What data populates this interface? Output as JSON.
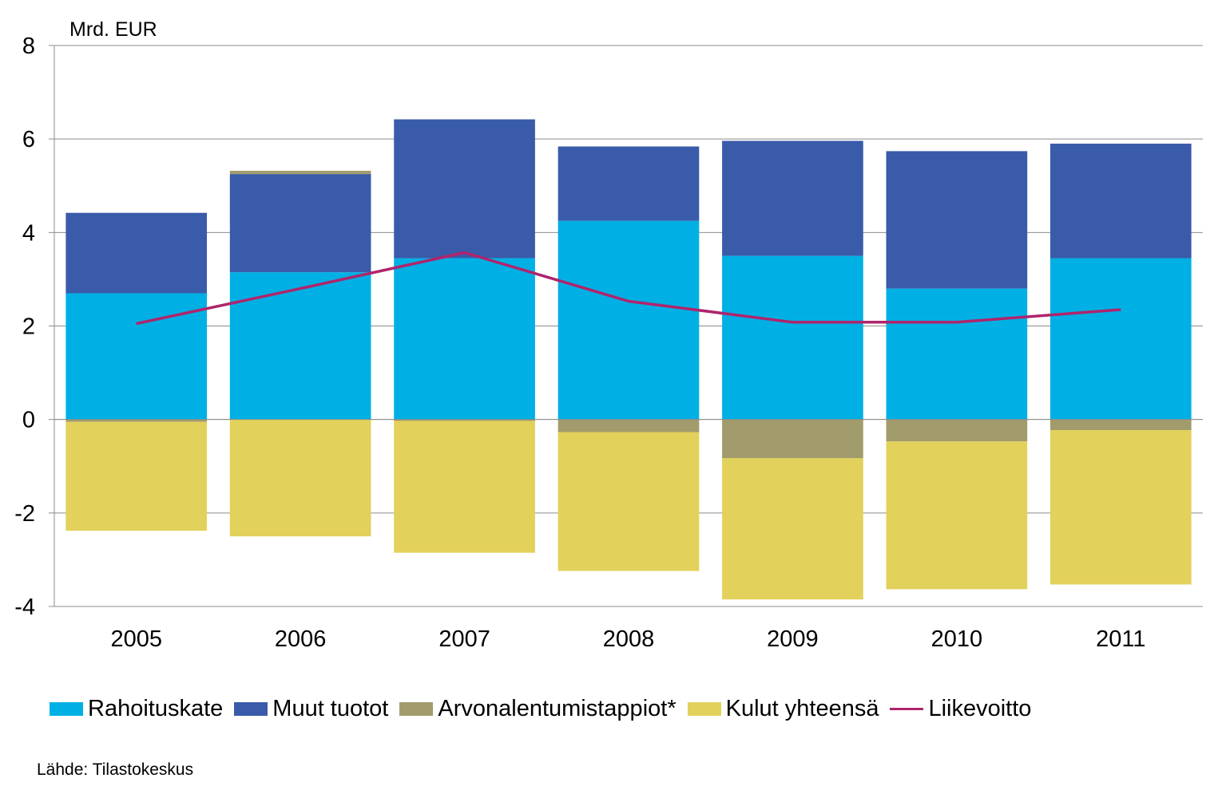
{
  "chart_data": {
    "type": "bar",
    "stacked": true,
    "unit_label": "Mrd. EUR",
    "categories": [
      "2005",
      "2006",
      "2007",
      "2008",
      "2009",
      "2010",
      "2011"
    ],
    "ylim": [
      -4,
      8
    ],
    "yticks": [
      "8",
      "6",
      "4",
      "2",
      "0",
      "-2",
      "-4"
    ],
    "ytick_values": [
      8,
      6,
      4,
      2,
      0,
      -2,
      -4
    ],
    "grid": true,
    "legend_position": "bottom",
    "series": [
      {
        "name": "Rahoituskate",
        "kind": "bar",
        "color": "#00b0e4",
        "values": [
          2.7,
          3.15,
          3.45,
          4.25,
          3.5,
          2.8,
          3.45
        ]
      },
      {
        "name": "Muut tuotot",
        "kind": "bar",
        "color": "#3a5ba9",
        "values": [
          1.72,
          2.1,
          2.97,
          1.59,
          2.46,
          2.94,
          2.45
        ]
      },
      {
        "name": "Arvonalentumistappiot*",
        "kind": "bar",
        "color": "#a29c6c",
        "values": [
          -0.05,
          0.07,
          -0.03,
          -0.27,
          -0.83,
          -0.47,
          -0.23
        ]
      },
      {
        "name": "Kulut yhteensä",
        "kind": "bar",
        "color": "#e2d15a",
        "values": [
          -2.33,
          -2.5,
          -2.82,
          -2.97,
          -3.02,
          -3.16,
          -3.3
        ]
      },
      {
        "name": "Liikevoitto",
        "kind": "line",
        "color": "#b0246c",
        "values": [
          2.05,
          2.8,
          3.57,
          2.53,
          2.08,
          2.08,
          2.35
        ]
      }
    ],
    "source": "Lähde: Tilastokeskus"
  }
}
